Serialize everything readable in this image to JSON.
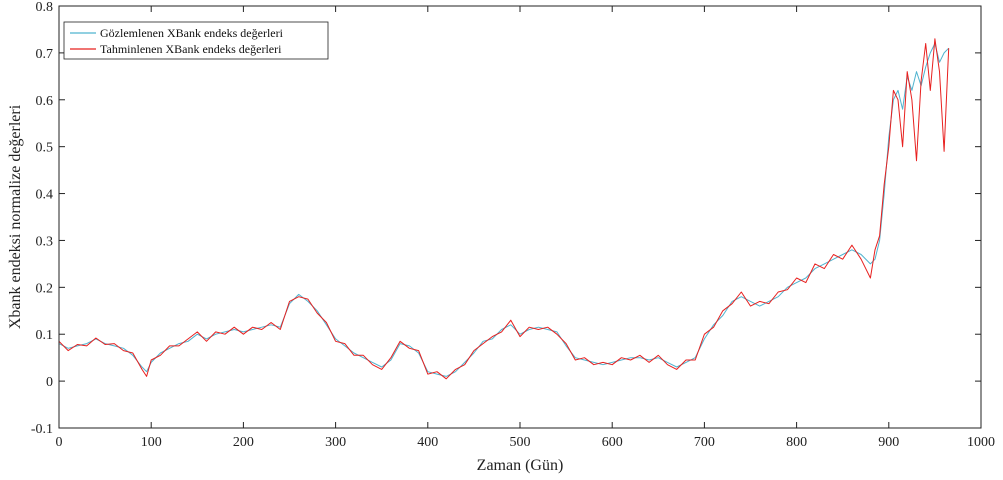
{
  "chart_data": {
    "type": "line",
    "title": "",
    "xlabel": "Zaman (Gün)",
    "ylabel": "Xbank endeksi normalize değerleri",
    "xlim": [
      0,
      1000
    ],
    "ylim": [
      -0.1,
      0.8
    ],
    "xticks": [
      0,
      100,
      200,
      300,
      400,
      500,
      600,
      700,
      800,
      900,
      1000
    ],
    "yticks": [
      -0.1,
      0,
      0.1,
      0.2,
      0.3,
      0.4,
      0.5,
      0.6,
      0.7,
      0.8
    ],
    "grid": false,
    "legend_position": "top-left",
    "series": [
      {
        "name": "Gözlemlenen XBank endeks değerleri",
        "color": "#4fb3cf",
        "x": [
          0,
          10,
          20,
          30,
          40,
          50,
          60,
          70,
          80,
          90,
          95,
          100,
          110,
          120,
          130,
          140,
          150,
          160,
          170,
          180,
          190,
          200,
          210,
          220,
          230,
          240,
          250,
          260,
          270,
          280,
          290,
          300,
          310,
          320,
          330,
          340,
          350,
          360,
          370,
          380,
          390,
          400,
          410,
          420,
          430,
          440,
          450,
          460,
          470,
          480,
          490,
          500,
          510,
          520,
          530,
          540,
          550,
          560,
          570,
          580,
          590,
          600,
          610,
          620,
          630,
          640,
          650,
          660,
          670,
          680,
          690,
          700,
          710,
          720,
          730,
          740,
          750,
          760,
          770,
          780,
          790,
          800,
          810,
          820,
          830,
          840,
          850,
          860,
          870,
          880,
          885,
          890,
          895,
          900,
          905,
          910,
          915,
          920,
          925,
          930,
          935,
          940,
          945,
          950,
          955,
          960,
          965
        ],
        "values": [
          0.08,
          0.07,
          0.075,
          0.08,
          0.09,
          0.08,
          0.075,
          0.07,
          0.055,
          0.03,
          0.02,
          0.04,
          0.06,
          0.07,
          0.08,
          0.085,
          0.1,
          0.09,
          0.1,
          0.105,
          0.11,
          0.105,
          0.11,
          0.115,
          0.12,
          0.115,
          0.165,
          0.185,
          0.17,
          0.15,
          0.12,
          0.09,
          0.075,
          0.06,
          0.05,
          0.04,
          0.03,
          0.045,
          0.08,
          0.075,
          0.06,
          0.02,
          0.015,
          0.01,
          0.02,
          0.04,
          0.06,
          0.085,
          0.09,
          0.11,
          0.12,
          0.1,
          0.11,
          0.115,
          0.11,
          0.105,
          0.075,
          0.05,
          0.045,
          0.04,
          0.035,
          0.04,
          0.045,
          0.05,
          0.05,
          0.045,
          0.05,
          0.04,
          0.03,
          0.04,
          0.05,
          0.09,
          0.12,
          0.14,
          0.17,
          0.18,
          0.17,
          0.16,
          0.17,
          0.18,
          0.2,
          0.21,
          0.22,
          0.24,
          0.25,
          0.26,
          0.27,
          0.28,
          0.27,
          0.25,
          0.26,
          0.3,
          0.4,
          0.52,
          0.6,
          0.62,
          0.58,
          0.65,
          0.62,
          0.66,
          0.63,
          0.67,
          0.7,
          0.72,
          0.68,
          0.7,
          0.71
        ]
      },
      {
        "name": "Tahminlenen XBank endeks değerleri",
        "color": "#e8201f",
        "x": [
          0,
          10,
          20,
          30,
          40,
          50,
          60,
          70,
          80,
          90,
          95,
          100,
          110,
          120,
          130,
          140,
          150,
          160,
          170,
          180,
          190,
          200,
          210,
          220,
          230,
          240,
          250,
          260,
          270,
          280,
          290,
          300,
          310,
          320,
          330,
          340,
          350,
          360,
          370,
          380,
          390,
          400,
          410,
          420,
          430,
          440,
          450,
          460,
          470,
          480,
          490,
          500,
          510,
          520,
          530,
          540,
          550,
          560,
          570,
          580,
          590,
          600,
          610,
          620,
          630,
          640,
          650,
          660,
          670,
          680,
          690,
          700,
          710,
          720,
          730,
          740,
          750,
          760,
          770,
          780,
          790,
          800,
          810,
          820,
          830,
          840,
          850,
          860,
          870,
          880,
          885,
          890,
          895,
          900,
          905,
          910,
          915,
          920,
          925,
          930,
          935,
          940,
          945,
          950,
          955,
          960,
          965
        ],
        "values": [
          0.085,
          0.065,
          0.078,
          0.075,
          0.092,
          0.078,
          0.08,
          0.065,
          0.06,
          0.025,
          0.01,
          0.045,
          0.055,
          0.075,
          0.075,
          0.09,
          0.105,
          0.085,
          0.105,
          0.1,
          0.115,
          0.1,
          0.115,
          0.11,
          0.125,
          0.11,
          0.17,
          0.18,
          0.175,
          0.145,
          0.125,
          0.085,
          0.08,
          0.055,
          0.055,
          0.035,
          0.025,
          0.05,
          0.085,
          0.07,
          0.065,
          0.015,
          0.02,
          0.005,
          0.025,
          0.035,
          0.065,
          0.08,
          0.095,
          0.105,
          0.13,
          0.095,
          0.115,
          0.11,
          0.115,
          0.1,
          0.08,
          0.045,
          0.05,
          0.035,
          0.04,
          0.035,
          0.05,
          0.045,
          0.055,
          0.04,
          0.055,
          0.035,
          0.025,
          0.045,
          0.045,
          0.1,
          0.115,
          0.15,
          0.165,
          0.19,
          0.16,
          0.17,
          0.165,
          0.19,
          0.195,
          0.22,
          0.21,
          0.25,
          0.24,
          0.27,
          0.26,
          0.29,
          0.26,
          0.22,
          0.28,
          0.31,
          0.42,
          0.5,
          0.62,
          0.6,
          0.5,
          0.66,
          0.6,
          0.47,
          0.64,
          0.72,
          0.62,
          0.73,
          0.66,
          0.49,
          0.71
        ]
      }
    ]
  }
}
